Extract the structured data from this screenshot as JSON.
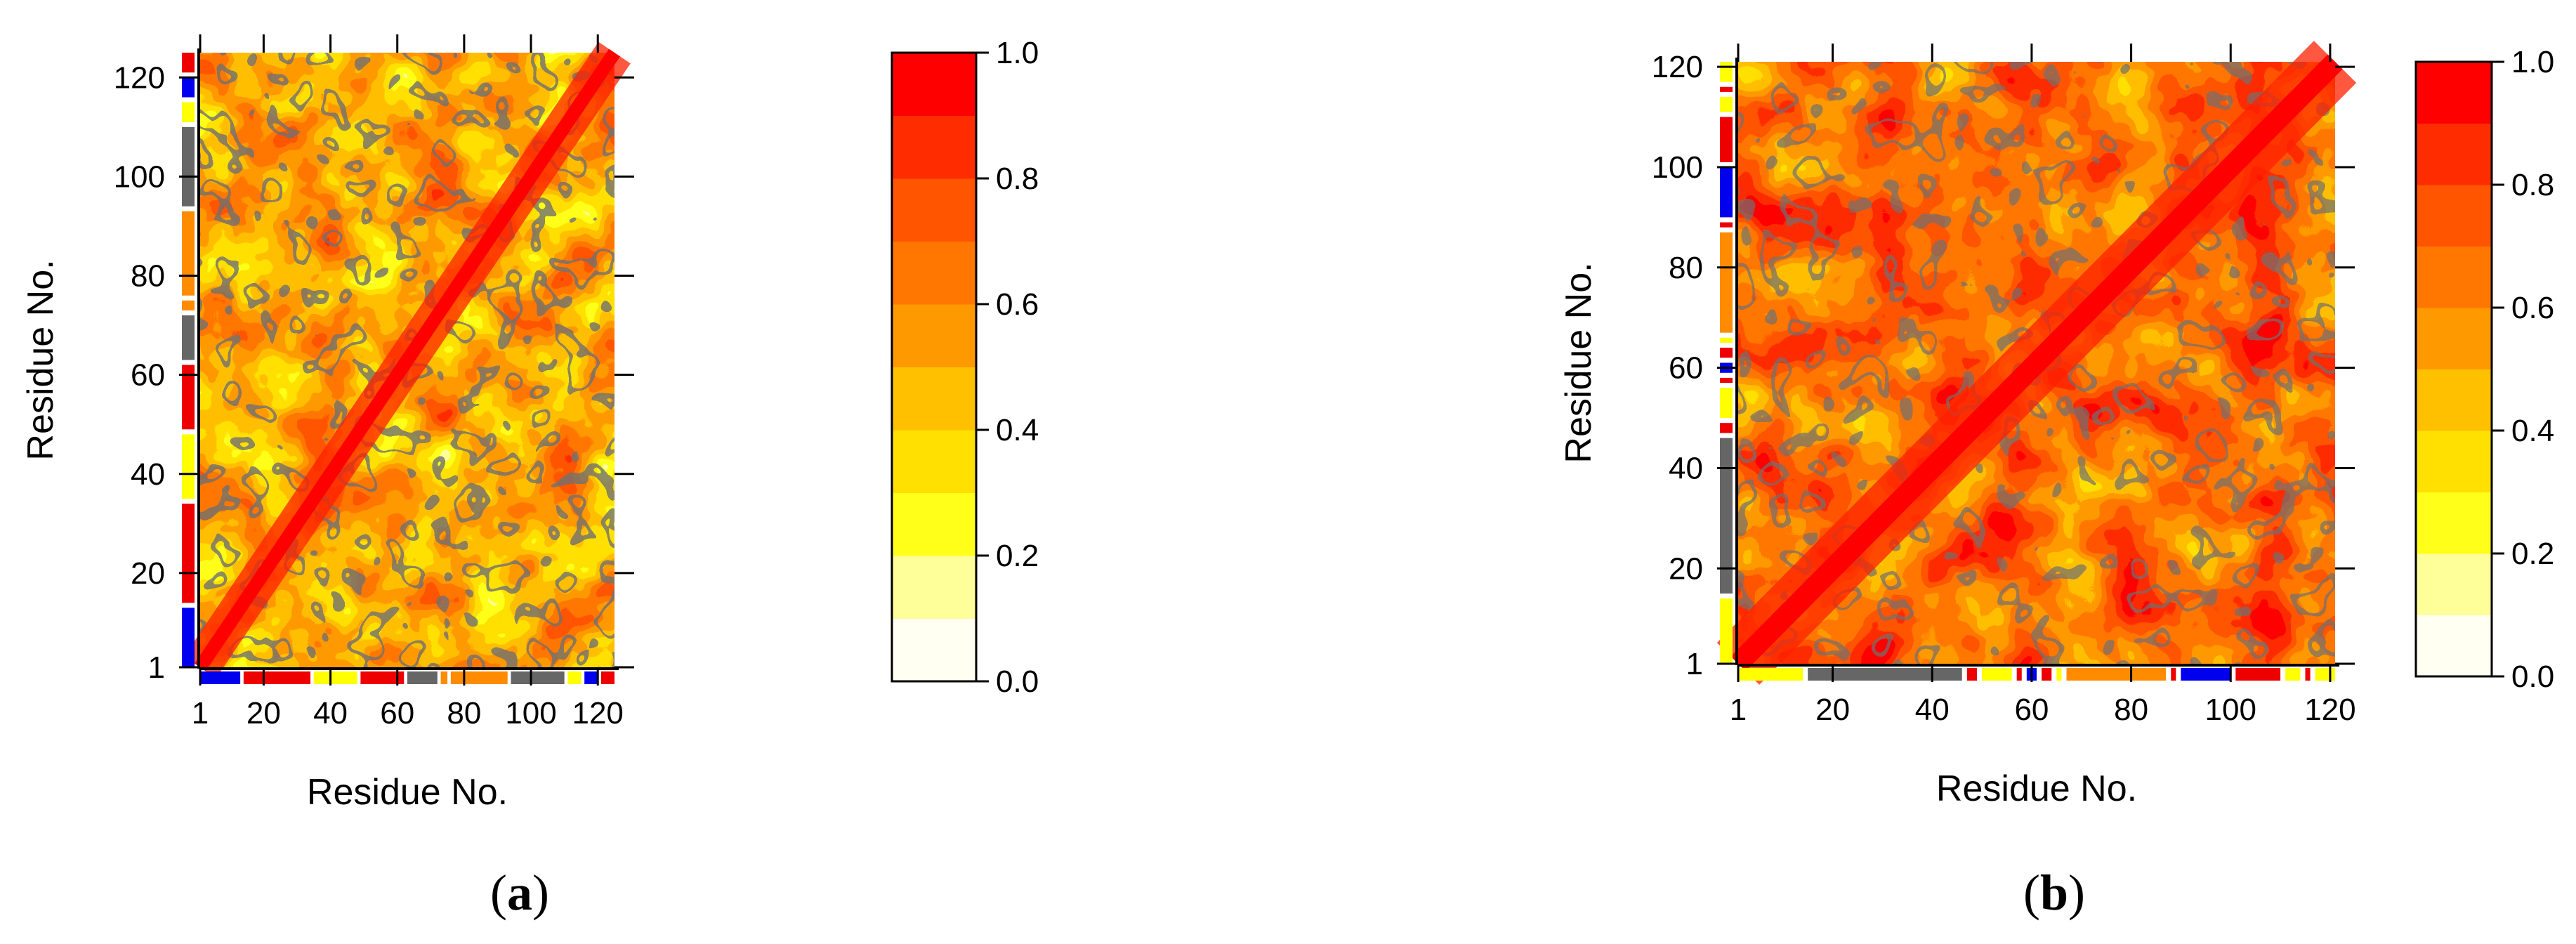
{
  "chart_data": [
    {
      "panel_label": "a",
      "type": "heatmap",
      "title": "",
      "xlabel": "Residue No.",
      "ylabel": "Residue No.",
      "xlim": [
        1,
        125
      ],
      "ylim": [
        1,
        125
      ],
      "x_ticks": [
        "1",
        "20",
        "40",
        "60",
        "80",
        "100",
        "120"
      ],
      "y_ticks": [
        "1",
        "20",
        "40",
        "60",
        "80",
        "100",
        "120"
      ],
      "colorbar": {
        "range": [
          0.0,
          1.0
        ],
        "ticks": [
          "0.0",
          "0.2",
          "0.4",
          "0.6",
          "0.8",
          "1.0"
        ],
        "levels": [
          "#fffff2",
          "#ffff99",
          "#ffff1a",
          "#ffe000",
          "#ffc000",
          "#ff9900",
          "#ff7700",
          "#ff5500",
          "#ff2c00",
          "#ff0000"
        ]
      },
      "contour_color": "#707070",
      "secondary_structure_bar": [
        {
          "from": 1,
          "to": 13,
          "color": "#0000ee"
        },
        {
          "from": 14,
          "to": 34,
          "color": "#ee0000"
        },
        {
          "from": 35,
          "to": 48,
          "color": "#ffff00"
        },
        {
          "from": 49,
          "to": 62,
          "color": "#ee0000"
        },
        {
          "from": 63,
          "to": 72,
          "color": "#666666"
        },
        {
          "from": 73,
          "to": 75,
          "color": "#ff8c00"
        },
        {
          "from": 76,
          "to": 93,
          "color": "#ff8c00"
        },
        {
          "from": 94,
          "to": 110,
          "color": "#666666"
        },
        {
          "from": 111,
          "to": 115,
          "color": "#ffff00"
        },
        {
          "from": 116,
          "to": 120,
          "color": "#0000ee"
        },
        {
          "from": 121,
          "to": 125,
          "color": "#ee0000"
        }
      ]
    },
    {
      "panel_label": "b",
      "type": "heatmap",
      "title": "",
      "xlabel": "Residue No.",
      "ylabel": "Residue No.",
      "xlim": [
        1,
        121
      ],
      "ylim": [
        1,
        121
      ],
      "x_ticks": [
        "1",
        "20",
        "40",
        "60",
        "80",
        "100",
        "120"
      ],
      "y_ticks": [
        "1",
        "20",
        "40",
        "60",
        "80",
        "100",
        "120"
      ],
      "colorbar": {
        "range": [
          0.0,
          1.0
        ],
        "ticks": [
          "0.0",
          "0.2",
          "0.4",
          "0.6",
          "0.8",
          "1.0"
        ],
        "levels": [
          "#fffff2",
          "#ffff99",
          "#ffff1a",
          "#ffe000",
          "#ffc000",
          "#ff9900",
          "#ff7700",
          "#ff5500",
          "#ff2c00",
          "#ff0000"
        ]
      },
      "contour_color": "#707070",
      "secondary_structure_bar": [
        {
          "from": 1,
          "to": 14,
          "color": "#ffff00"
        },
        {
          "from": 15,
          "to": 46,
          "color": "#666666"
        },
        {
          "from": 47,
          "to": 49,
          "color": "#ee0000"
        },
        {
          "from": 50,
          "to": 56,
          "color": "#ffff00"
        },
        {
          "from": 57,
          "to": 58,
          "color": "#ee0000"
        },
        {
          "from": 59,
          "to": 61,
          "color": "#0000ee"
        },
        {
          "from": 62,
          "to": 64,
          "color": "#ee0000"
        },
        {
          "from": 65,
          "to": 66,
          "color": "#ffff00"
        },
        {
          "from": 67,
          "to": 87,
          "color": "#ff8c00"
        },
        {
          "from": 88,
          "to": 89,
          "color": "#ee0000"
        },
        {
          "from": 90,
          "to": 100,
          "color": "#0000ee"
        },
        {
          "from": 101,
          "to": 110,
          "color": "#ee0000"
        },
        {
          "from": 111,
          "to": 114,
          "color": "#ffff00"
        },
        {
          "from": 115,
          "to": 116,
          "color": "#ee0000"
        },
        {
          "from": 117,
          "to": 121,
          "color": "#ffff00"
        }
      ]
    }
  ]
}
